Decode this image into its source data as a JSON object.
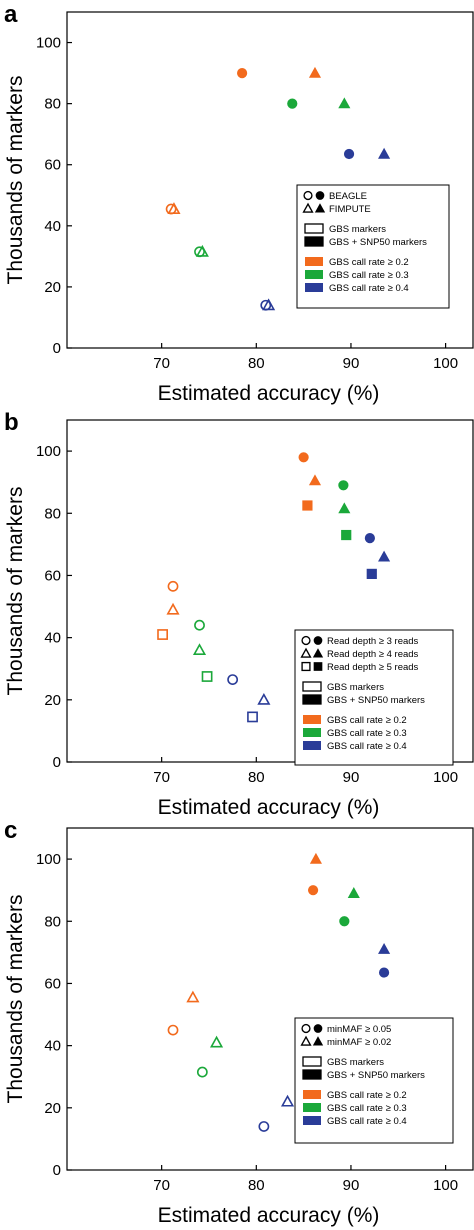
{
  "colors": {
    "orange": "#f26a1d",
    "green": "#1ba83a",
    "blue": "#2a3c98"
  },
  "panels": [
    {
      "letter": "a"
    },
    {
      "letter": "b"
    },
    {
      "letter": "c"
    }
  ],
  "chart_data": [
    {
      "type": "scatter",
      "panel": "a",
      "xlabel": "Estimated accuracy (%)",
      "ylabel": "Thousands of markers",
      "xlim": [
        60,
        103
      ],
      "ylim": [
        0,
        110
      ],
      "xticks": [
        70,
        80,
        90,
        100
      ],
      "yticks": [
        0,
        20,
        40,
        60,
        80,
        100
      ],
      "legend": {
        "position": "right",
        "entries": [
          {
            "label": "BEAGLE",
            "shapes": [
              "circle"
            ],
            "fills": [
              "open",
              "filled"
            ],
            "color": "#000000"
          },
          {
            "label": "FIMPUTE",
            "shapes": [
              "triangle"
            ],
            "fills": [
              "open",
              "filled"
            ],
            "color": "#000000"
          },
          {
            "label": "GBS markers",
            "swatch": "open"
          },
          {
            "label": "GBS + SNP50 markers",
            "swatch": "filled"
          },
          {
            "label": "GBS call rate ≥ 0.2",
            "swatch": "#f26a1d"
          },
          {
            "label": "GBS call rate ≥ 0.3",
            "swatch": "#1ba83a"
          },
          {
            "label": "GBS call rate ≥ 0.4",
            "swatch": "#2a3c98"
          }
        ]
      },
      "points": [
        {
          "x": 71.0,
          "y": 45.5,
          "shape": "circle",
          "fill": "open",
          "color": "#f26a1d"
        },
        {
          "x": 71.3,
          "y": 45.5,
          "shape": "triangle",
          "fill": "open",
          "color": "#f26a1d"
        },
        {
          "x": 74.0,
          "y": 31.5,
          "shape": "circle",
          "fill": "open",
          "color": "#1ba83a"
        },
        {
          "x": 74.3,
          "y": 31.5,
          "shape": "triangle",
          "fill": "open",
          "color": "#1ba83a"
        },
        {
          "x": 81.0,
          "y": 14.0,
          "shape": "circle",
          "fill": "open",
          "color": "#2a3c98"
        },
        {
          "x": 81.3,
          "y": 14.0,
          "shape": "triangle",
          "fill": "open",
          "color": "#2a3c98"
        },
        {
          "x": 78.5,
          "y": 90.0,
          "shape": "circle",
          "fill": "filled",
          "color": "#f26a1d"
        },
        {
          "x": 86.2,
          "y": 90.0,
          "shape": "triangle",
          "fill": "filled",
          "color": "#f26a1d"
        },
        {
          "x": 83.8,
          "y": 80.0,
          "shape": "circle",
          "fill": "filled",
          "color": "#1ba83a"
        },
        {
          "x": 89.3,
          "y": 80.0,
          "shape": "triangle",
          "fill": "filled",
          "color": "#1ba83a"
        },
        {
          "x": 89.8,
          "y": 63.5,
          "shape": "circle",
          "fill": "filled",
          "color": "#2a3c98"
        },
        {
          "x": 93.5,
          "y": 63.5,
          "shape": "triangle",
          "fill": "filled",
          "color": "#2a3c98"
        }
      ]
    },
    {
      "type": "scatter",
      "panel": "b",
      "xlabel": "Estimated accuracy (%)",
      "ylabel": "Thousands of markers",
      "xlim": [
        60,
        103
      ],
      "ylim": [
        0,
        110
      ],
      "xticks": [
        70,
        80,
        90,
        100
      ],
      "yticks": [
        0,
        20,
        40,
        60,
        80,
        100
      ],
      "legend": {
        "position": "right",
        "entries": [
          {
            "label": "Read depth ≥ 3 reads",
            "shapes": [
              "circle"
            ],
            "fills": [
              "open",
              "filled"
            ],
            "color": "#000000"
          },
          {
            "label": "Read depth ≥ 4 reads",
            "shapes": [
              "triangle"
            ],
            "fills": [
              "open",
              "filled"
            ],
            "color": "#000000"
          },
          {
            "label": "Read depth ≥ 5 reads",
            "shapes": [
              "square"
            ],
            "fills": [
              "open",
              "filled"
            ],
            "color": "#000000"
          },
          {
            "label": "GBS markers",
            "swatch": "open"
          },
          {
            "label": "GBS + SNP50 markers",
            "swatch": "filled"
          },
          {
            "label": "GBS call rate ≥ 0.2",
            "swatch": "#f26a1d"
          },
          {
            "label": "GBS call rate ≥ 0.3",
            "swatch": "#1ba83a"
          },
          {
            "label": "GBS call rate ≥ 0.4",
            "swatch": "#2a3c98"
          }
        ]
      },
      "points": [
        {
          "x": 71.2,
          "y": 56.5,
          "shape": "circle",
          "fill": "open",
          "color": "#f26a1d"
        },
        {
          "x": 71.2,
          "y": 49.0,
          "shape": "triangle",
          "fill": "open",
          "color": "#f26a1d"
        },
        {
          "x": 70.1,
          "y": 41.0,
          "shape": "square",
          "fill": "open",
          "color": "#f26a1d"
        },
        {
          "x": 74.0,
          "y": 44.0,
          "shape": "circle",
          "fill": "open",
          "color": "#1ba83a"
        },
        {
          "x": 74.0,
          "y": 36.0,
          "shape": "triangle",
          "fill": "open",
          "color": "#1ba83a"
        },
        {
          "x": 74.8,
          "y": 27.5,
          "shape": "square",
          "fill": "open",
          "color": "#1ba83a"
        },
        {
          "x": 77.5,
          "y": 26.5,
          "shape": "circle",
          "fill": "open",
          "color": "#2a3c98"
        },
        {
          "x": 80.8,
          "y": 20.0,
          "shape": "triangle",
          "fill": "open",
          "color": "#2a3c98"
        },
        {
          "x": 79.6,
          "y": 14.5,
          "shape": "square",
          "fill": "open",
          "color": "#2a3c98"
        },
        {
          "x": 85.0,
          "y": 98.0,
          "shape": "circle",
          "fill": "filled",
          "color": "#f26a1d"
        },
        {
          "x": 86.2,
          "y": 90.5,
          "shape": "triangle",
          "fill": "filled",
          "color": "#f26a1d"
        },
        {
          "x": 85.4,
          "y": 82.5,
          "shape": "square",
          "fill": "filled",
          "color": "#f26a1d"
        },
        {
          "x": 89.2,
          "y": 89.0,
          "shape": "circle",
          "fill": "filled",
          "color": "#1ba83a"
        },
        {
          "x": 89.3,
          "y": 81.5,
          "shape": "triangle",
          "fill": "filled",
          "color": "#1ba83a"
        },
        {
          "x": 89.5,
          "y": 73.0,
          "shape": "square",
          "fill": "filled",
          "color": "#1ba83a"
        },
        {
          "x": 92.0,
          "y": 72.0,
          "shape": "circle",
          "fill": "filled",
          "color": "#2a3c98"
        },
        {
          "x": 93.5,
          "y": 66.0,
          "shape": "triangle",
          "fill": "filled",
          "color": "#2a3c98"
        },
        {
          "x": 92.2,
          "y": 60.5,
          "shape": "square",
          "fill": "filled",
          "color": "#2a3c98"
        }
      ]
    },
    {
      "type": "scatter",
      "panel": "c",
      "xlabel": "Estimated accuracy (%)",
      "ylabel": "Thousands of markers",
      "xlim": [
        60,
        103
      ],
      "ylim": [
        0,
        110
      ],
      "xticks": [
        70,
        80,
        90,
        100
      ],
      "yticks": [
        0,
        20,
        40,
        60,
        80,
        100
      ],
      "legend": {
        "position": "right",
        "entries": [
          {
            "label": "minMAF ≥ 0.05",
            "shapes": [
              "circle"
            ],
            "fills": [
              "open",
              "filled"
            ],
            "color": "#000000"
          },
          {
            "label": "minMAF ≥ 0.02",
            "shapes": [
              "triangle"
            ],
            "fills": [
              "open",
              "filled"
            ],
            "color": "#000000"
          },
          {
            "label": "GBS markers",
            "swatch": "open"
          },
          {
            "label": "GBS + SNP50 markers",
            "swatch": "filled"
          },
          {
            "label": "GBS call rate ≥ 0.2",
            "swatch": "#f26a1d"
          },
          {
            "label": "GBS call rate ≥ 0.3",
            "swatch": "#1ba83a"
          },
          {
            "label": "GBS call rate ≥ 0.4",
            "swatch": "#2a3c98"
          }
        ]
      },
      "points": [
        {
          "x": 71.2,
          "y": 45.0,
          "shape": "circle",
          "fill": "open",
          "color": "#f26a1d"
        },
        {
          "x": 73.3,
          "y": 55.5,
          "shape": "triangle",
          "fill": "open",
          "color": "#f26a1d"
        },
        {
          "x": 74.3,
          "y": 31.5,
          "shape": "circle",
          "fill": "open",
          "color": "#1ba83a"
        },
        {
          "x": 75.8,
          "y": 41.0,
          "shape": "triangle",
          "fill": "open",
          "color": "#1ba83a"
        },
        {
          "x": 80.8,
          "y": 14.0,
          "shape": "circle",
          "fill": "open",
          "color": "#2a3c98"
        },
        {
          "x": 83.3,
          "y": 22.0,
          "shape": "triangle",
          "fill": "open",
          "color": "#2a3c98"
        },
        {
          "x": 86.0,
          "y": 90.0,
          "shape": "circle",
          "fill": "filled",
          "color": "#f26a1d"
        },
        {
          "x": 86.3,
          "y": 100.0,
          "shape": "triangle",
          "fill": "filled",
          "color": "#f26a1d"
        },
        {
          "x": 89.3,
          "y": 80.0,
          "shape": "circle",
          "fill": "filled",
          "color": "#1ba83a"
        },
        {
          "x": 90.3,
          "y": 89.0,
          "shape": "triangle",
          "fill": "filled",
          "color": "#1ba83a"
        },
        {
          "x": 93.5,
          "y": 63.5,
          "shape": "circle",
          "fill": "filled",
          "color": "#2a3c98"
        },
        {
          "x": 93.5,
          "y": 71.0,
          "shape": "triangle",
          "fill": "filled",
          "color": "#2a3c98"
        }
      ]
    }
  ]
}
